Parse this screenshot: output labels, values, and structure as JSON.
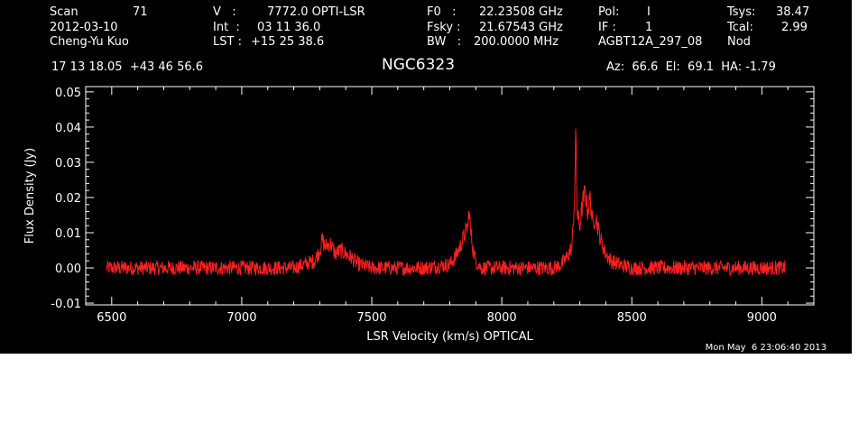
{
  "header": {
    "scan_label": "Scan",
    "scan_value": "71",
    "date": "2012-03-10",
    "observer": "Cheng-Yu Kuo",
    "v_label": "V   :",
    "v_value": "7772.0 OPTI-LSR",
    "int_label": "Int  :",
    "int_value": "03 11 36.0",
    "lst_label": "LST :",
    "lst_value": "+15 25 38.6",
    "f0_label": "F0   :",
    "f0_value": "22.23508 GHz",
    "fsky_label": "Fsky :",
    "fsky_value": "21.67543 GHz",
    "bw_label": "BW   :",
    "bw_value": "200.0000 MHz",
    "pol_label": "Pol:",
    "pol_value": "I",
    "if_label": "IF :",
    "if_value": "1",
    "project": "AGBT12A_297_08",
    "tsys_label": "Tsys:",
    "tsys_value": "38.47",
    "tcal_label": "Tcal:",
    "tcal_value": "2.99",
    "mode": "Nod",
    "coords": "17 13 18.05  +43 46 56.6",
    "az_el_ha": "Az:  66.6  El:  69.1  HA: -1.79"
  },
  "timestamp": "Mon May  6 23:06:40 2013",
  "colors": {
    "background": "#000000",
    "axes": "#ffffff",
    "trace": "#ff2020"
  },
  "chart_data": {
    "type": "line",
    "title": "NGC6323",
    "xlabel": "LSR Velocity (km/s) OPTICAL",
    "ylabel": "Flux Density (Jy)",
    "xlim": [
      6400,
      9200
    ],
    "ylim": [
      -0.0105,
      0.0515
    ],
    "xticks": [
      6500,
      7000,
      7500,
      8000,
      8500,
      9000
    ],
    "yticks": [
      -0.01,
      0.0,
      0.01,
      0.02,
      0.03,
      0.04,
      0.05
    ],
    "ytick_labels": [
      "-0.01",
      "0.00",
      "0.01",
      "0.02",
      "0.03",
      "0.04",
      "0.05"
    ],
    "grid": false,
    "series": [
      {
        "x": [
          6480,
          6600,
          6800,
          7000,
          7200,
          7280,
          7300,
          7310,
          7320,
          7340,
          7360,
          7380,
          7400,
          7420,
          7450,
          7500,
          7600,
          7700,
          7800,
          7820,
          7840,
          7850,
          7860,
          7870,
          7875,
          7880,
          7885,
          7890,
          7900,
          7920,
          7950,
          8000,
          8100,
          8200,
          8230,
          8250,
          8270,
          8280,
          8285,
          8290,
          8300,
          8310,
          8320,
          8330,
          8340,
          8350,
          8360,
          8380,
          8400,
          8420,
          8450,
          8500,
          8600,
          8800,
          9000,
          9090
        ],
        "y": [
          0.0,
          0.0,
          0.0,
          0.0,
          0.0,
          0.002,
          0.005,
          0.008,
          0.006,
          0.007,
          0.004,
          0.005,
          0.004,
          0.003,
          0.001,
          0.0,
          0.0,
          0.0,
          0.001,
          0.003,
          0.006,
          0.008,
          0.01,
          0.012,
          0.017,
          0.01,
          0.008,
          0.005,
          0.002,
          0.0,
          0.0,
          0.0,
          0.0,
          0.0,
          0.001,
          0.003,
          0.006,
          0.02,
          0.039,
          0.015,
          0.012,
          0.018,
          0.022,
          0.016,
          0.02,
          0.012,
          0.015,
          0.008,
          0.004,
          0.002,
          0.001,
          0.0,
          0.0,
          0.0,
          0.0,
          0.0
        ]
      }
    ]
  }
}
